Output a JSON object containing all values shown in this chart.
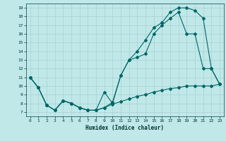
{
  "xlabel": "Humidex (Indice chaleur)",
  "bg_color": "#c0e8e8",
  "line_color": "#006666",
  "xlim": [
    -0.5,
    23.5
  ],
  "ylim": [
    6.5,
    19.5
  ],
  "xticks": [
    0,
    1,
    2,
    3,
    4,
    5,
    6,
    7,
    8,
    9,
    10,
    11,
    12,
    13,
    14,
    15,
    16,
    17,
    18,
    19,
    20,
    21,
    22,
    23
  ],
  "yticks": [
    7,
    8,
    9,
    10,
    11,
    12,
    13,
    14,
    15,
    16,
    17,
    18,
    19
  ],
  "line1_x": [
    0,
    1,
    2,
    3,
    4,
    5,
    6,
    7,
    8,
    9,
    10,
    11,
    12,
    13,
    14,
    15,
    16,
    17,
    18,
    19,
    20,
    21,
    22,
    23
  ],
  "line1_y": [
    11,
    9.8,
    7.8,
    7.2,
    8.3,
    8.0,
    7.5,
    7.2,
    7.2,
    9.3,
    8.0,
    11.2,
    13.0,
    14.0,
    15.3,
    16.7,
    17.3,
    18.5,
    19.0,
    19.0,
    18.7,
    17.8,
    12.0,
    10.2
  ],
  "line2_x": [
    0,
    1,
    2,
    3,
    4,
    5,
    6,
    7,
    8,
    9,
    10,
    11,
    12,
    13,
    14,
    15,
    16,
    17,
    18,
    19,
    20,
    21,
    22,
    23
  ],
  "line2_y": [
    11,
    9.8,
    7.8,
    7.2,
    8.3,
    8.0,
    7.5,
    7.2,
    7.2,
    7.5,
    8.1,
    11.2,
    13.0,
    13.3,
    13.7,
    16.0,
    17.0,
    17.8,
    18.5,
    16.0,
    16.0,
    12.0,
    12.0,
    10.2
  ],
  "line3_x": [
    0,
    1,
    2,
    3,
    4,
    5,
    6,
    7,
    8,
    9,
    10,
    11,
    12,
    13,
    14,
    15,
    16,
    17,
    18,
    19,
    20,
    21,
    22,
    23
  ],
  "line3_y": [
    11,
    9.8,
    7.8,
    7.2,
    8.3,
    8.0,
    7.5,
    7.2,
    7.2,
    7.5,
    7.9,
    8.2,
    8.5,
    8.8,
    9.0,
    9.3,
    9.5,
    9.7,
    9.8,
    10.0,
    10.0,
    10.0,
    10.0,
    10.2
  ]
}
